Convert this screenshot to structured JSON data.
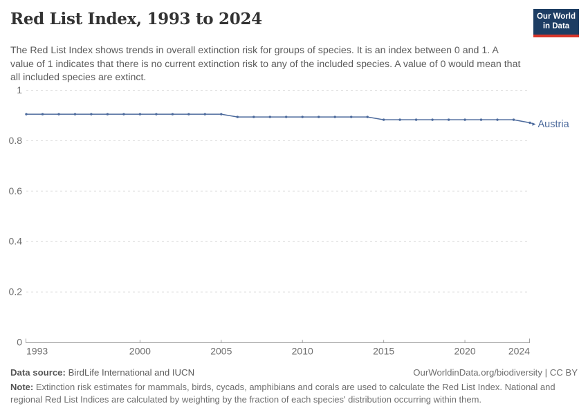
{
  "header": {
    "title": "Red List Index, 1993 to 2024",
    "subtitle": "The Red List Index shows trends in overall extinction risk for groups of species. It is an index between 0 and 1. A value of 1 indicates that there is no current extinction risk to any of the included species. A value of 0 would mean that all included species are extinct."
  },
  "logo": {
    "line1": "Our World",
    "line2": "in Data",
    "bg_color": "#1d3d63",
    "bar_color": "#d8352a"
  },
  "chart_data": {
    "type": "line",
    "title": "Red List Index, 1993 to 2024",
    "xlabel": "",
    "ylabel": "",
    "x": [
      1993,
      1994,
      1995,
      1996,
      1997,
      1998,
      1999,
      2000,
      2001,
      2002,
      2003,
      2004,
      2005,
      2006,
      2007,
      2008,
      2009,
      2010,
      2011,
      2012,
      2013,
      2014,
      2015,
      2016,
      2017,
      2018,
      2019,
      2020,
      2021,
      2022,
      2023,
      2024
    ],
    "series": [
      {
        "name": "Austria",
        "color": "#4c6a9c",
        "values": [
          0.905,
          0.905,
          0.905,
          0.905,
          0.905,
          0.905,
          0.905,
          0.905,
          0.905,
          0.905,
          0.905,
          0.905,
          0.905,
          0.894,
          0.894,
          0.894,
          0.894,
          0.894,
          0.894,
          0.894,
          0.894,
          0.894,
          0.883,
          0.883,
          0.883,
          0.883,
          0.883,
          0.883,
          0.883,
          0.883,
          0.883,
          0.871
        ]
      }
    ],
    "ylim": [
      0,
      1
    ],
    "yticks": [
      0,
      0.2,
      0.4,
      0.6,
      0.8,
      1
    ],
    "ytick_labels": [
      "0",
      "0.2",
      "0.4",
      "0.6",
      "0.8",
      "1"
    ],
    "xticks": [
      1993,
      2000,
      2005,
      2010,
      2015,
      2020,
      2024
    ],
    "grid": "horizontal-dashed",
    "legend_position": "end-of-line-label",
    "end_label": "Austria"
  },
  "footer": {
    "data_source_label": "Data source:",
    "data_source_value": "BirdLife International and IUCN",
    "attribution": "OurWorldinData.org/biodiversity | CC BY",
    "note_label": "Note:",
    "note_text": "Extinction risk estimates for mammals, birds, cycads, amphibians and corals are used to calculate the Red List Index. National and regional Red List Indices are calculated by weighting by the fraction of each species' distribution occurring within them."
  }
}
